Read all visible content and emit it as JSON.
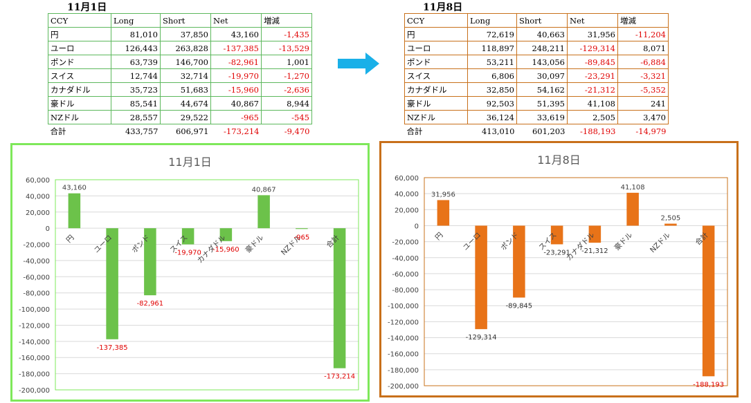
{
  "left_panel": {
    "date": "11月1日",
    "headers": [
      "CCY",
      "Long",
      "Short",
      "Net",
      "増減"
    ],
    "rows": [
      [
        "円",
        "81,010",
        "37,850",
        "43,160",
        "-1,435"
      ],
      [
        "ユーロ",
        "126,443",
        "263,828",
        "-137,385",
        "-13,529"
      ],
      [
        "ポンド",
        "63,739",
        "146,700",
        "-82,961",
        "1,001"
      ],
      [
        "スイス",
        "12,744",
        "32,714",
        "-19,970",
        "-1,270"
      ],
      [
        "カナダドル",
        "35,723",
        "51,683",
        "-15,960",
        "-2,636"
      ],
      [
        "豪ドル",
        "85,541",
        "44,674",
        "40,867",
        "8,944"
      ],
      [
        "NZドル",
        "28,557",
        "29,522",
        "-965",
        "-545"
      ]
    ],
    "total": [
      "合計",
      "433,757",
      "606,971",
      "-173,214",
      "-9,470"
    ]
  },
  "right_panel": {
    "date": "11月8日",
    "headers": [
      "CCY",
      "Long",
      "Short",
      "Net",
      "増減"
    ],
    "rows": [
      [
        "円",
        "72,619",
        "40,663",
        "31,956",
        "-11,204"
      ],
      [
        "ユーロ",
        "118,897",
        "248,211",
        "-129,314",
        "8,071"
      ],
      [
        "ポンド",
        "53,211",
        "143,056",
        "-89,845",
        "-6,884"
      ],
      [
        "スイス",
        "6,806",
        "30,097",
        "-23,291",
        "-3,321"
      ],
      [
        "カナダドル",
        "32,850",
        "54,162",
        "-21,312",
        "-5,352"
      ],
      [
        "豪ドル",
        "92,503",
        "51,395",
        "41,108",
        "241"
      ],
      [
        "NZドル",
        "36,124",
        "33,619",
        "2,505",
        "3,470"
      ]
    ],
    "total": [
      "合計",
      "413,010",
      "601,203",
      "-188,193",
      "-14,979"
    ]
  },
  "arrow": {
    "icon": "right-arrow-icon",
    "color": "#1ab0e8"
  },
  "chart_data": [
    {
      "type": "bar",
      "title": "11月1日",
      "categories": [
        "円",
        "ユーロ",
        "ポンド",
        "スイス",
        "カナダドル",
        "豪ドル",
        "NZドル",
        "合計"
      ],
      "values": [
        43160,
        -137385,
        -82961,
        -19970,
        -15960,
        40867,
        -965,
        -173214
      ],
      "ylim": [
        -200000,
        60000
      ],
      "yticks": [
        "60,000",
        "40,000",
        "20,000",
        "0",
        "-20,000",
        "-40,000",
        "-60,000",
        "-80,000",
        "-100,000",
        "-120,000",
        "-140,000",
        "-160,000",
        "-180,000",
        "-200,000"
      ],
      "data_labels": [
        "43,160",
        "-137,385",
        "-82,961",
        "-19,970",
        "-15,960",
        "40,867",
        "-965",
        "-173,214"
      ],
      "bar_color": "#6cc24a",
      "frame_color": "#7ee85a",
      "negative_label_color": "#e00000",
      "grid": true,
      "legend": "none"
    },
    {
      "type": "bar",
      "title": "11月8日",
      "categories": [
        "円",
        "ユーロ",
        "ポンド",
        "スイス",
        "カナダドル",
        "豪ドル",
        "NZドル",
        "合計"
      ],
      "values": [
        31956,
        -129314,
        -89845,
        -23291,
        -21312,
        41108,
        2505,
        -188193
      ],
      "ylim": [
        -200000,
        60000
      ],
      "yticks": [
        "60,000",
        "40,000",
        "20,000",
        "0",
        "-20,000",
        "-40,000",
        "-60,000",
        "-80,000",
        "-100,000",
        "-120,000",
        "-140,000",
        "-160,000",
        "-180,000",
        "-200,000"
      ],
      "data_labels": [
        "31,956",
        "-129,314",
        "-89,845",
        "-23,291",
        "-21,312",
        "41,108",
        "2,505",
        "-188,193"
      ],
      "bar_color": "#e87318",
      "frame_color": "#c8701a",
      "negative_label_color": "#333333",
      "total_label_color": "#e00000",
      "grid": true,
      "legend": "none"
    }
  ]
}
